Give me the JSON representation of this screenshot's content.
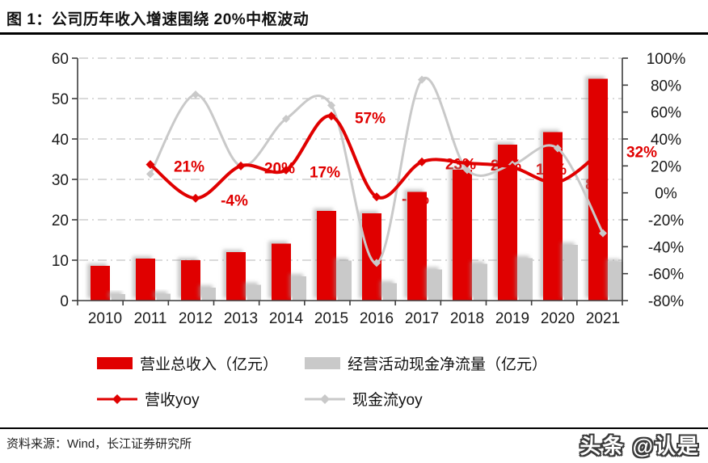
{
  "header": {
    "title": "图 1：公司历年收入增速围绕 20%中枢波动"
  },
  "chart_data": {
    "type": "bar",
    "subtype": "combo-bar-line-dual-axis",
    "categories": [
      "2010",
      "2011",
      "2012",
      "2013",
      "2014",
      "2015",
      "2016",
      "2017",
      "2018",
      "2019",
      "2020",
      "2021"
    ],
    "series": [
      {
        "name": "营业总收入（亿元）",
        "type": "bar",
        "axis": "left",
        "color": "#e00000",
        "values": [
          8.6,
          10.4,
          10.0,
          12.0,
          14.1,
          22.2,
          21.6,
          26.9,
          32.4,
          38.6,
          41.7,
          54.9
        ]
      },
      {
        "name": "经营活动现金净流量（亿元）",
        "type": "bar",
        "axis": "left",
        "color": "#c9c9c9",
        "values": [
          1.6,
          1.7,
          3.2,
          3.9,
          6.0,
          9.9,
          4.3,
          7.7,
          9.1,
          10.5,
          13.8,
          9.7
        ]
      },
      {
        "name": "营收yoy",
        "type": "line",
        "axis": "right",
        "color": "#e00000",
        "values": [
          null,
          21,
          -4,
          20,
          17,
          57,
          -3,
          23,
          22,
          19,
          8,
          32
        ],
        "point_labels": [
          "",
          "21%",
          "-4%",
          "20%",
          "17%",
          "57%",
          "-3%",
          "23%",
          "22%",
          "19%",
          "8%",
          "32%"
        ]
      },
      {
        "name": "现金流yoy",
        "type": "line",
        "axis": "right",
        "color": "#c9c9c9",
        "values": [
          null,
          14,
          73,
          20,
          55,
          65,
          -52,
          84,
          17,
          21,
          33,
          -30
        ]
      }
    ],
    "left_axis": {
      "min": 0,
      "max": 60,
      "ticks": [
        0,
        10,
        20,
        30,
        40,
        50,
        60
      ]
    },
    "right_axis": {
      "min": -80,
      "max": 100,
      "ticks": [
        100,
        80,
        60,
        40,
        20,
        0,
        -20,
        -40,
        -60,
        -80
      ],
      "format": "percent"
    },
    "grid": true,
    "legend_position": "bottom"
  },
  "footer": {
    "source": "资料来源：Wind，长江证券研究所",
    "watermark": "头条 @认是"
  }
}
